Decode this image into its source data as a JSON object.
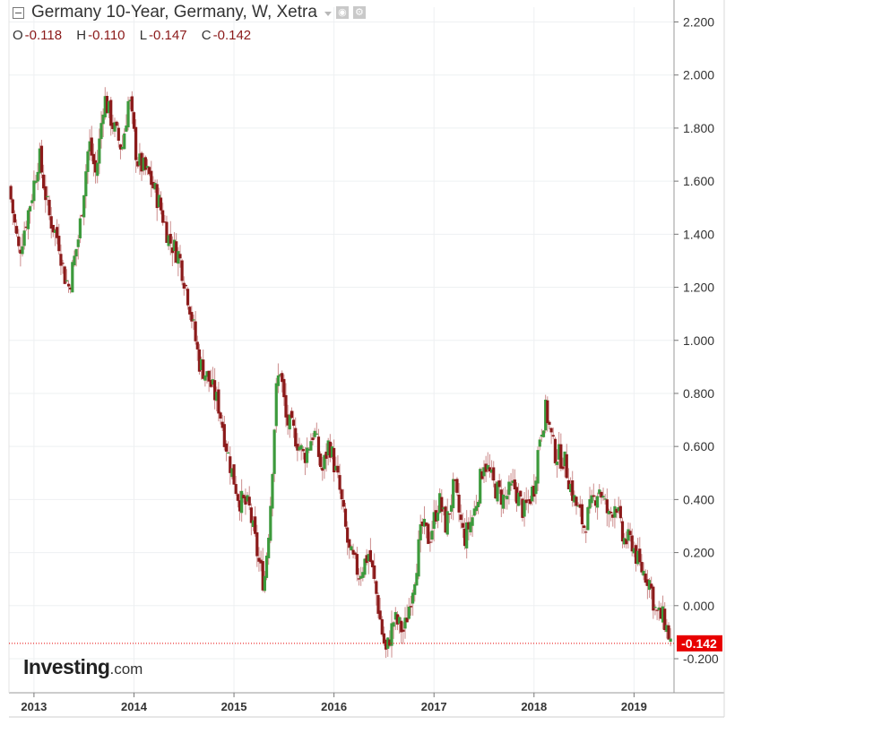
{
  "legend": {
    "title": "Germany 10-Year, Germany, W, Xetra",
    "open_label": "O",
    "open_value": "-0.118",
    "high_label": "H",
    "high_value": "-0.110",
    "low_label": "L",
    "low_value": "-0.147",
    "close_label": "C",
    "close_value": "-0.142",
    "eye_icon": "eye-icon",
    "settings_icon": "gear-icon"
  },
  "logo": {
    "brand": "Investing",
    "suffix": ".com"
  },
  "colors": {
    "up": "#3c9a3c",
    "down": "#8b1a1a",
    "wick": "#cc8c8c",
    "price_tag": "#e80000",
    "grid": "#eef0f2",
    "axis": "#555555"
  },
  "chart_data": {
    "type": "candlestick",
    "title": "Germany 10-Year, Germany, W, Xetra",
    "frequency": "weekly",
    "last_price_label": "-0.142",
    "x_tick_labels": [
      "2013",
      "2014",
      "2015",
      "2016",
      "2017",
      "2018",
      "2019"
    ],
    "xlim": [
      2012.75,
      2019.4
    ],
    "y_tick_labels": [
      "-0.200",
      "0.000",
      "0.200",
      "0.400",
      "0.600",
      "0.800",
      "1.000",
      "1.200",
      "1.400",
      "1.600",
      "1.800",
      "2.000",
      "2.200"
    ],
    "ylim": [
      -0.3,
      2.25
    ],
    "grid": true,
    "key_points": [
      [
        2012.75,
        1.58
      ],
      [
        2012.85,
        1.33
      ],
      [
        2012.98,
        1.55
      ],
      [
        2013.05,
        1.7
      ],
      [
        2013.15,
        1.47
      ],
      [
        2013.25,
        1.37
      ],
      [
        2013.3,
        1.25
      ],
      [
        2013.35,
        1.2
      ],
      [
        2013.45,
        1.4
      ],
      [
        2013.55,
        1.75
      ],
      [
        2013.62,
        1.62
      ],
      [
        2013.7,
        1.92
      ],
      [
        2013.8,
        1.8
      ],
      [
        2013.88,
        1.72
      ],
      [
        2013.95,
        1.92
      ],
      [
        2014.03,
        1.68
      ],
      [
        2014.15,
        1.62
      ],
      [
        2014.25,
        1.52
      ],
      [
        2014.35,
        1.38
      ],
      [
        2014.45,
        1.32
      ],
      [
        2014.55,
        1.15
      ],
      [
        2014.65,
        0.92
      ],
      [
        2014.75,
        0.85
      ],
      [
        2014.85,
        0.75
      ],
      [
        2014.95,
        0.55
      ],
      [
        2015.05,
        0.4
      ],
      [
        2015.15,
        0.37
      ],
      [
        2015.25,
        0.16
      ],
      [
        2015.3,
        0.08
      ],
      [
        2015.36,
        0.35
      ],
      [
        2015.42,
        0.8
      ],
      [
        2015.46,
        0.9
      ],
      [
        2015.52,
        0.7
      ],
      [
        2015.6,
        0.65
      ],
      [
        2015.7,
        0.56
      ],
      [
        2015.8,
        0.66
      ],
      [
        2015.88,
        0.5
      ],
      [
        2015.95,
        0.62
      ],
      [
        2016.05,
        0.45
      ],
      [
        2016.15,
        0.2
      ],
      [
        2016.25,
        0.12
      ],
      [
        2016.35,
        0.2
      ],
      [
        2016.42,
        0.05
      ],
      [
        2016.48,
        -0.1
      ],
      [
        2016.52,
        -0.18
      ],
      [
        2016.6,
        -0.05
      ],
      [
        2016.7,
        -0.1
      ],
      [
        2016.8,
        0.1
      ],
      [
        2016.88,
        0.3
      ],
      [
        2016.95,
        0.25
      ],
      [
        2017.05,
        0.4
      ],
      [
        2017.12,
        0.3
      ],
      [
        2017.2,
        0.45
      ],
      [
        2017.3,
        0.25
      ],
      [
        2017.4,
        0.35
      ],
      [
        2017.5,
        0.55
      ],
      [
        2017.6,
        0.45
      ],
      [
        2017.7,
        0.4
      ],
      [
        2017.8,
        0.45
      ],
      [
        2017.9,
        0.35
      ],
      [
        2018.0,
        0.45
      ],
      [
        2018.06,
        0.65
      ],
      [
        2018.12,
        0.74
      ],
      [
        2018.2,
        0.58
      ],
      [
        2018.3,
        0.55
      ],
      [
        2018.4,
        0.4
      ],
      [
        2018.5,
        0.3
      ],
      [
        2018.6,
        0.4
      ],
      [
        2018.65,
        0.45
      ],
      [
        2018.75,
        0.33
      ],
      [
        2018.82,
        0.4
      ],
      [
        2018.88,
        0.25
      ],
      [
        2018.98,
        0.24
      ],
      [
        2019.05,
        0.15
      ],
      [
        2019.15,
        0.1
      ],
      [
        2019.22,
        -0.03
      ],
      [
        2019.3,
        -0.05
      ],
      [
        2019.37,
        -0.142
      ]
    ]
  }
}
